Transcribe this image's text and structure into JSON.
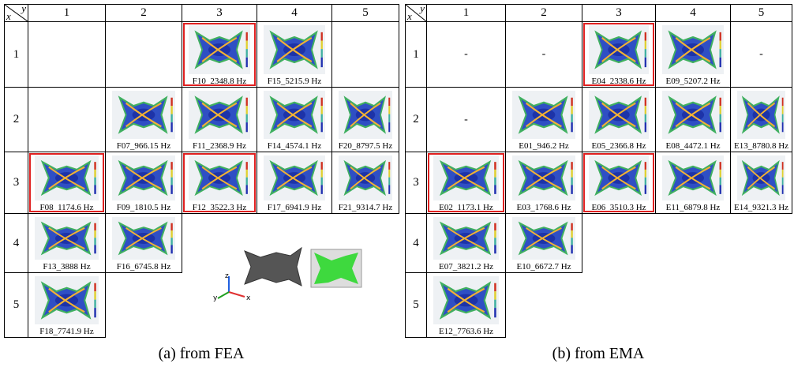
{
  "left": {
    "corner": {
      "x": "x",
      "y": "y"
    },
    "columns": [
      "1",
      "2",
      "3",
      "4",
      "5"
    ],
    "rows": [
      {
        "header": "1",
        "cells": [
          null,
          null,
          {
            "label": "F10_2348.8 Hz",
            "image": true,
            "highlight": true
          },
          {
            "label": "F15_5215.9 Hz",
            "image": true,
            "highlight": false
          },
          null
        ]
      },
      {
        "header": "2",
        "cells": [
          null,
          {
            "label": "F07_966.15 Hz",
            "image": true,
            "highlight": false
          },
          {
            "label": "F11_2368.9 Hz",
            "image": true,
            "highlight": false
          },
          {
            "label": "F14_4574.1 Hz",
            "image": true,
            "highlight": false
          },
          {
            "label": "F20_8797.5 Hz",
            "image": true,
            "highlight": false
          }
        ]
      },
      {
        "header": "3",
        "cells": [
          {
            "label": "F08_1174.6 Hz",
            "image": true,
            "highlight": true
          },
          {
            "label": "F09_1810.5 Hz",
            "image": true,
            "highlight": false
          },
          {
            "label": "F12_3522.3 Hz",
            "image": true,
            "highlight": true
          },
          {
            "label": "F17_6941.9 Hz",
            "image": true,
            "highlight": false
          },
          {
            "label": "F21_9314.7 Hz",
            "image": true,
            "highlight": false
          }
        ]
      },
      {
        "header": "4",
        "cells": [
          {
            "label": "F13_3888 Hz",
            "image": true,
            "highlight": false
          },
          {
            "label": "F16_6745.8 Hz",
            "image": true,
            "highlight": false
          }
        ]
      },
      {
        "header": "5",
        "cells": [
          {
            "label": "F18_7741.9 Hz",
            "image": true,
            "highlight": false
          }
        ]
      }
    ],
    "inset": {
      "axes": [
        "z",
        "y",
        "x"
      ]
    },
    "caption": "(a) from FEA"
  },
  "right": {
    "corner": {
      "x": "x",
      "y": "y"
    },
    "columns": [
      "1",
      "2",
      "3",
      "4",
      "5"
    ],
    "rows": [
      {
        "header": "1",
        "cells": [
          {
            "label": "-",
            "image": false,
            "highlight": false
          },
          {
            "label": "-",
            "image": false,
            "highlight": false
          },
          {
            "label": "E04_2338.6 Hz",
            "image": true,
            "highlight": true
          },
          {
            "label": "E09_5207.2 Hz",
            "image": true,
            "highlight": false
          },
          {
            "label": "-",
            "image": false,
            "highlight": false
          }
        ]
      },
      {
        "header": "2",
        "cells": [
          {
            "label": "-",
            "image": false,
            "highlight": false
          },
          {
            "label": "E01_946.2 Hz",
            "image": true,
            "highlight": false
          },
          {
            "label": "E05_2366.8 Hz",
            "image": true,
            "highlight": false
          },
          {
            "label": "E08_4472.1 Hz",
            "image": true,
            "highlight": false
          },
          {
            "label": "E13_8780.8 Hz",
            "image": true,
            "highlight": false
          }
        ]
      },
      {
        "header": "3",
        "cells": [
          {
            "label": "E02_1173.1 Hz",
            "image": true,
            "highlight": true
          },
          {
            "label": "E03_1768.6 Hz",
            "image": true,
            "highlight": false
          },
          {
            "label": "E06_3510.3 Hz",
            "image": true,
            "highlight": true
          },
          {
            "label": "E11_6879.8 Hz",
            "image": true,
            "highlight": false
          },
          {
            "label": "E14_9321.3 Hz",
            "image": true,
            "highlight": false
          }
        ]
      },
      {
        "header": "4",
        "cells": [
          {
            "label": "E07_3821.2 Hz",
            "image": true,
            "highlight": false
          },
          {
            "label": "E10_6672.7 Hz",
            "image": true,
            "highlight": false
          }
        ]
      },
      {
        "header": "5",
        "cells": [
          {
            "label": "E12_7763.6 Hz",
            "image": true,
            "highlight": false
          }
        ]
      }
    ],
    "caption": "(b) from EMA"
  }
}
